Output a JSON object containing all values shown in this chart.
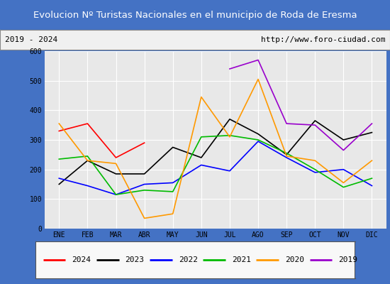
{
  "title": "Evolucion Nº Turistas Nacionales en el municipio de Roda de Eresma",
  "subtitle_left": "2019 - 2024",
  "subtitle_right": "http://www.foro-ciudad.com",
  "title_bg_color": "#4472c4",
  "title_text_color": "#ffffff",
  "subtitle_bg_color": "#f0f0f0",
  "subtitle_text_color": "#000000",
  "plot_bg_color": "#e8e8e8",
  "grid_color": "#ffffff",
  "outer_bg_color": "#4472c4",
  "months": [
    "ENE",
    "FEB",
    "MAR",
    "ABR",
    "MAY",
    "JUN",
    "JUL",
    "AGO",
    "SEP",
    "OCT",
    "NOV",
    "DIC"
  ],
  "ylim": [
    0,
    600
  ],
  "yticks": [
    0,
    100,
    200,
    300,
    400,
    500,
    600
  ],
  "series": {
    "2024": {
      "color": "#ff0000",
      "data": [
        330,
        355,
        240,
        290,
        null,
        null,
        null,
        null,
        null,
        null,
        null,
        null
      ]
    },
    "2023": {
      "color": "#000000",
      "data": [
        150,
        230,
        185,
        185,
        275,
        240,
        370,
        320,
        250,
        365,
        300,
        325
      ]
    },
    "2022": {
      "color": "#0000ff",
      "data": [
        170,
        145,
        115,
        150,
        155,
        215,
        195,
        295,
        240,
        190,
        200,
        145
      ]
    },
    "2021": {
      "color": "#00bb00",
      "data": [
        235,
        245,
        115,
        130,
        125,
        310,
        315,
        300,
        255,
        200,
        140,
        170
      ]
    },
    "2020": {
      "color": "#ff9900",
      "data": [
        355,
        230,
        220,
        35,
        50,
        445,
        310,
        505,
        245,
        230,
        155,
        230
      ]
    },
    "2019": {
      "color": "#9900cc",
      "data": [
        null,
        null,
        null,
        null,
        null,
        null,
        540,
        570,
        355,
        350,
        265,
        355
      ]
    }
  },
  "legend_order": [
    "2024",
    "2023",
    "2022",
    "2021",
    "2020",
    "2019"
  ]
}
